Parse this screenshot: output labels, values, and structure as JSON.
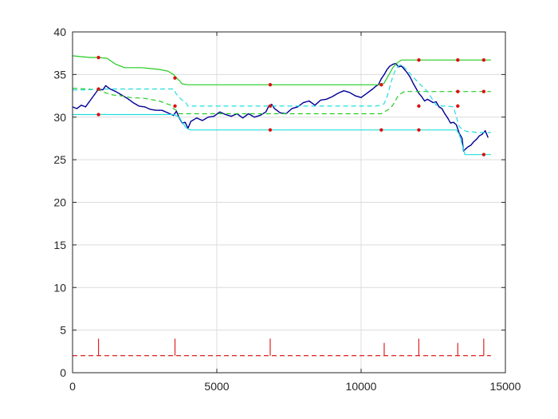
{
  "chart_data": {
    "type": "line",
    "title": "",
    "xlabel": "",
    "ylabel": "",
    "xlim": [
      0,
      15000
    ],
    "ylim": [
      0,
      40
    ],
    "grid": true,
    "legend": "none",
    "x_ticks": [
      {
        "value": 0,
        "label": "0"
      },
      {
        "value": 5000,
        "label": "5000"
      },
      {
        "value": 10000,
        "label": "10000"
      },
      {
        "value": 15000,
        "label": "15000"
      }
    ],
    "y_ticks": [
      {
        "value": 0,
        "label": "0"
      },
      {
        "value": 5,
        "label": "5"
      },
      {
        "value": 10,
        "label": "10"
      },
      {
        "value": 15,
        "label": "15"
      },
      {
        "value": 20,
        "label": "20"
      },
      {
        "value": 25,
        "label": "25"
      },
      {
        "value": 30,
        "label": "30"
      },
      {
        "value": 35,
        "label": "35"
      },
      {
        "value": 40,
        "label": "40"
      }
    ],
    "colors": {
      "price": "#0000aa",
      "price_dash": "#000066",
      "green": "#22cc22",
      "cyan": "#22dddd",
      "signal": "#dd2222",
      "marker": "#dd1111",
      "grid": "#dcdcdc",
      "axis": "#262626"
    },
    "series": [
      {
        "style": "price",
        "x": [
          0,
          150,
          300,
          450,
          600,
          750,
          900,
          1050,
          1150,
          1300,
          1500,
          1700,
          1900,
          2100,
          2300,
          2500,
          2700,
          2900,
          3100,
          3300,
          3500,
          3600,
          3700,
          3800,
          3900,
          4000,
          4100,
          4300,
          4500,
          4700,
          4900,
          5100,
          5300,
          5500,
          5700,
          5900,
          6100,
          6300,
          6500,
          6700,
          6800,
          6900,
          7000,
          7200,
          7400,
          7600,
          7800,
          8000,
          8200,
          8400,
          8600,
          8800,
          9000,
          9200,
          9400,
          9600,
          9800,
          10000,
          10200,
          10400,
          10500,
          10600,
          10700,
          10800,
          10900,
          11000,
          11100,
          11200,
          11300,
          11400,
          11500,
          11600,
          11700,
          11800,
          11900,
          12000,
          12100,
          12200,
          12300,
          12400,
          12500,
          12600,
          12700,
          12800,
          12900,
          13000,
          13100,
          13200,
          13300,
          13400,
          13500,
          13550,
          13600,
          13700,
          13800,
          13900,
          14000,
          14100,
          14200,
          14300,
          14400
        ],
        "y": [
          31.2,
          31.0,
          31.4,
          31.2,
          31.9,
          32.6,
          33.3,
          33.2,
          33.7,
          33.3,
          33.0,
          32.6,
          32.2,
          31.7,
          31.3,
          31.2,
          30.9,
          30.8,
          30.8,
          30.5,
          30.2,
          30.7,
          29.9,
          29.3,
          29.4,
          28.7,
          29.5,
          29.9,
          29.6,
          30.0,
          30.1,
          30.6,
          30.3,
          30.1,
          30.4,
          29.9,
          30.4,
          30.0,
          30.2,
          30.6,
          31.3,
          31.5,
          31.0,
          30.5,
          30.4,
          31.0,
          31.2,
          31.7,
          31.9,
          31.4,
          32.0,
          32.1,
          32.4,
          32.8,
          33.1,
          32.9,
          32.5,
          32.3,
          32.8,
          33.3,
          33.6,
          33.8,
          34.5,
          35.0,
          35.6,
          36.0,
          36.2,
          36.3,
          35.9,
          36.0,
          35.6,
          35.2,
          34.7,
          34.0,
          33.4,
          32.8,
          32.4,
          31.9,
          32.1,
          31.9,
          31.7,
          31.8,
          31.2,
          31.0,
          30.4,
          29.9,
          29.3,
          29.4,
          29.1,
          28.1,
          27.5,
          26.0,
          26.2,
          26.5,
          26.7,
          27.1,
          27.4,
          27.8,
          28.0,
          28.4,
          27.6
        ]
      },
      {
        "style": "green-solid",
        "x": [
          0,
          300,
          600,
          900,
          1200,
          1500,
          1800,
          2100,
          2400,
          2700,
          3000,
          3300,
          3500,
          3600,
          3700,
          3800,
          4000,
          4500,
          5000,
          6000,
          7000,
          8000,
          9000,
          10000,
          10700,
          10800,
          10900,
          11000,
          11100,
          11200,
          11300,
          11400,
          12000,
          13000,
          14000,
          14500
        ],
        "y": [
          37.2,
          37.1,
          37.0,
          37.0,
          36.9,
          36.2,
          35.8,
          35.8,
          35.8,
          35.7,
          35.6,
          35.4,
          35.0,
          34.6,
          34.3,
          33.9,
          33.8,
          33.8,
          33.8,
          33.8,
          33.8,
          33.8,
          33.8,
          33.8,
          33.8,
          34.0,
          34.6,
          35.2,
          35.8,
          36.2,
          36.5,
          36.7,
          36.7,
          36.7,
          36.7,
          36.7
        ]
      },
      {
        "style": "green-dash",
        "x": [
          0,
          500,
          900,
          1100,
          1400,
          1700,
          2000,
          2500,
          3000,
          3400,
          3500,
          3600,
          3700,
          3800,
          4000,
          5000,
          6000,
          7000,
          8000,
          9000,
          10000,
          10700,
          10800,
          11000,
          11100,
          11200,
          11300,
          11500,
          12000,
          13000,
          14000,
          14500
        ],
        "y": [
          33.4,
          33.3,
          33.2,
          32.9,
          32.6,
          32.5,
          32.3,
          32.2,
          31.9,
          31.4,
          31.0,
          30.8,
          30.4,
          30.4,
          30.4,
          30.4,
          30.4,
          30.4,
          30.4,
          30.4,
          30.4,
          30.4,
          30.6,
          31.0,
          31.4,
          32.0,
          32.6,
          33.0,
          33.0,
          33.0,
          33.0,
          33.0
        ]
      },
      {
        "style": "cyan-dash",
        "x": [
          0,
          500,
          1000,
          1500,
          2000,
          2500,
          3000,
          3500,
          3600,
          3700,
          3800,
          3900,
          4000,
          5000,
          6000,
          7000,
          8000,
          9000,
          10000,
          10500,
          10700,
          10800,
          10900,
          11000,
          11100,
          11200,
          11300,
          11400,
          12000,
          12300,
          12600,
          12800,
          13000,
          13200,
          13400,
          13500,
          13600,
          13700,
          13800,
          14000,
          14300,
          14500
        ],
        "y": [
          33.2,
          33.2,
          33.3,
          33.3,
          33.3,
          33.3,
          33.3,
          33.3,
          32.7,
          32.3,
          32.0,
          31.8,
          31.3,
          31.3,
          31.3,
          31.3,
          31.3,
          31.3,
          31.3,
          31.3,
          31.4,
          31.6,
          32.4,
          33.6,
          34.8,
          35.6,
          36.0,
          36.2,
          34.0,
          33.0,
          31.4,
          31.3,
          31.3,
          31.2,
          28.9,
          28.6,
          28.4,
          28.3,
          28.3,
          28.2,
          28.2,
          28.2
        ]
      },
      {
        "style": "cyan-solid",
        "x": [
          0,
          1000,
          2000,
          3000,
          3500,
          3700,
          3800,
          3900,
          4000,
          4100,
          5000,
          6000,
          7000,
          8000,
          9000,
          10000,
          10700,
          10800,
          11000,
          12000,
          13000,
          13300,
          13400,
          13500,
          13600,
          13700,
          14000,
          14500
        ],
        "y": [
          30.3,
          30.3,
          30.3,
          30.3,
          30.3,
          30.0,
          29.4,
          28.9,
          28.6,
          28.5,
          28.5,
          28.5,
          28.5,
          28.5,
          28.5,
          28.5,
          28.5,
          28.5,
          28.5,
          28.5,
          28.5,
          28.5,
          28.0,
          26.8,
          25.6,
          25.6,
          25.6,
          25.6
        ]
      }
    ],
    "markers": {
      "x": [
        900,
        900,
        900,
        3550,
        3550,
        6850,
        6850,
        6850,
        10700,
        10700,
        12000,
        12000,
        12000,
        13350,
        13350,
        13350,
        14250,
        14250,
        14250
      ],
      "y": [
        37.0,
        33.3,
        30.3,
        34.6,
        31.3,
        33.8,
        31.3,
        28.5,
        33.8,
        28.5,
        36.7,
        31.3,
        28.5,
        36.7,
        33.0,
        31.3,
        36.7,
        33.0,
        25.6
      ]
    },
    "signal": {
      "baseline": 2,
      "xlim": [
        0,
        14500
      ],
      "spikes": [
        {
          "x": 900,
          "height": 4
        },
        {
          "x": 3550,
          "height": 4
        },
        {
          "x": 6850,
          "height": 4
        },
        {
          "x": 10800,
          "height": 3.5
        },
        {
          "x": 12000,
          "height": 4
        },
        {
          "x": 13350,
          "height": 3.5
        },
        {
          "x": 14250,
          "height": 4
        }
      ]
    }
  }
}
